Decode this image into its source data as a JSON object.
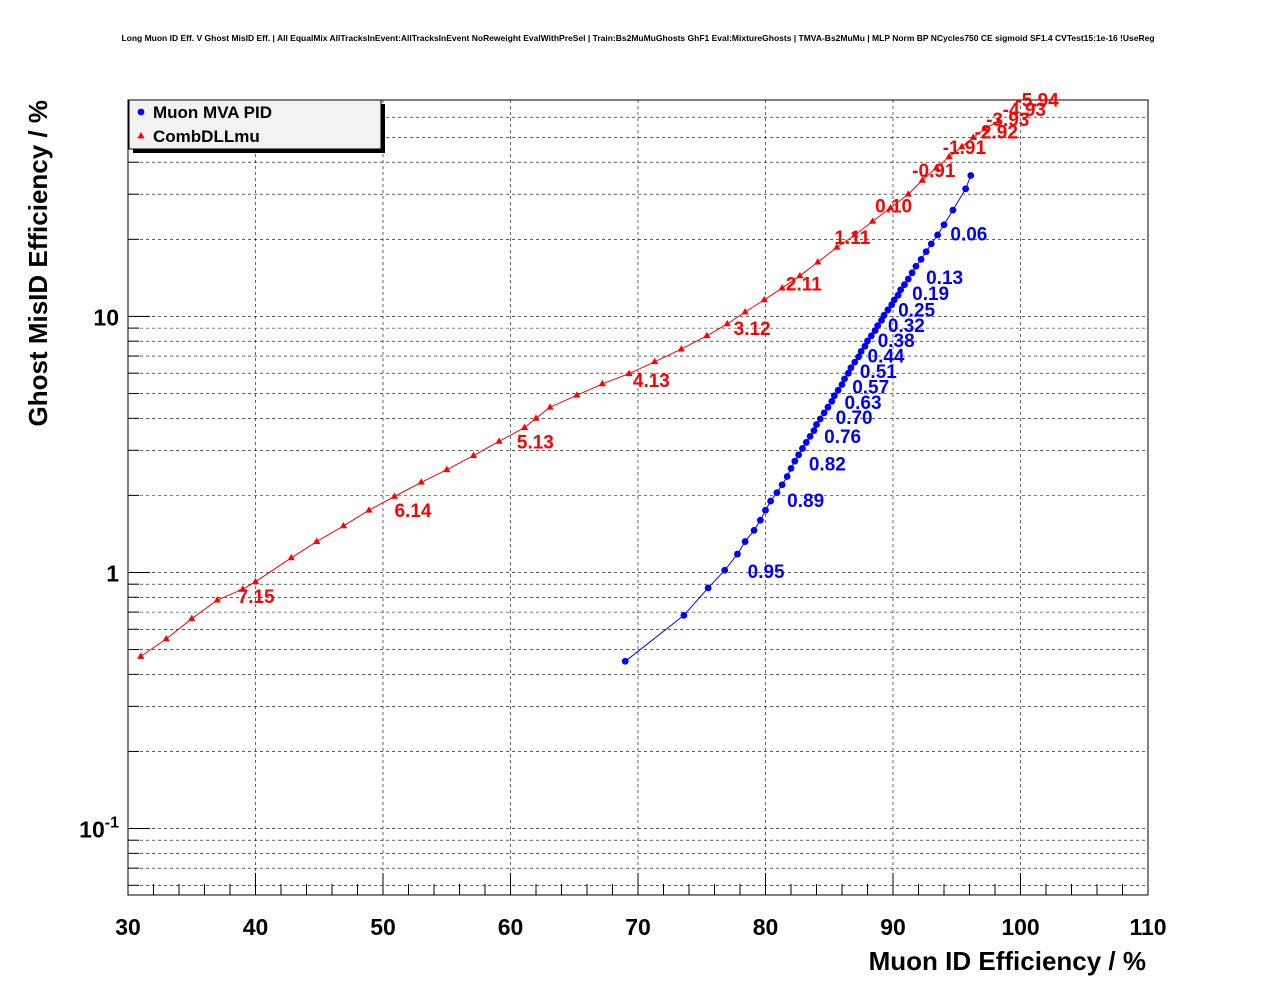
{
  "chart_data": {
    "type": "scatter",
    "title": "Long Muon ID Eff. V Ghost MisID Eff. | All EqualMix AllTracksInEvent:AllTracksInEvent NoReweight EvalWithPreSel | Train:Bs2MuMuGhosts GhF1 Eval:MixtureGhosts | TMVA-Bs2MuMu | MLP Norm BP NCycles750 CE sigmoid SF1.4 CVTest15:1e-16 !UseReg",
    "xlabel": "Muon ID Efficiency / %",
    "ylabel": "Ghost MisID Efficiency / %",
    "xlim": [
      30,
      110
    ],
    "ylim": [
      0.055,
      70
    ],
    "yscale": "log",
    "grid": true,
    "legend_position": "top-left",
    "x_ticks": [
      "30",
      "40",
      "50",
      "60",
      "70",
      "80",
      "90",
      "100",
      "110"
    ],
    "y_ticks": [
      {
        "base": "10",
        "exp": "-1",
        "value": 0.1
      },
      {
        "base": "1",
        "exp": "",
        "value": 1
      },
      {
        "base": "10",
        "exp": "",
        "value": 10
      }
    ],
    "series": [
      {
        "name": "Muon MVA PID",
        "color": "#0000ff",
        "marker": "circle",
        "points": [
          [
            69.0,
            0.45
          ],
          [
            73.6,
            0.68
          ],
          [
            75.5,
            0.87
          ],
          [
            76.8,
            1.02
          ],
          [
            77.8,
            1.18
          ],
          [
            78.4,
            1.32
          ],
          [
            79.1,
            1.46
          ],
          [
            79.6,
            1.6
          ],
          [
            80.0,
            1.75
          ],
          [
            80.4,
            1.9
          ],
          [
            80.9,
            2.05
          ],
          [
            81.3,
            2.2
          ],
          [
            81.7,
            2.37
          ],
          [
            82.0,
            2.55
          ],
          [
            82.3,
            2.72
          ],
          [
            82.6,
            2.88
          ],
          [
            82.9,
            3.05
          ],
          [
            83.2,
            3.22
          ],
          [
            83.5,
            3.4
          ],
          [
            83.8,
            3.58
          ],
          [
            84.0,
            3.78
          ],
          [
            84.3,
            3.98
          ],
          [
            84.6,
            4.2
          ],
          [
            84.9,
            4.42
          ],
          [
            85.2,
            4.66
          ],
          [
            85.4,
            4.9
          ],
          [
            85.7,
            5.15
          ],
          [
            86.0,
            5.42
          ],
          [
            86.2,
            5.7
          ],
          [
            86.5,
            6.0
          ],
          [
            86.7,
            6.3
          ],
          [
            87.0,
            6.62
          ],
          [
            87.3,
            6.95
          ],
          [
            87.5,
            7.3
          ],
          [
            87.8,
            7.65
          ],
          [
            88.0,
            8.02
          ],
          [
            88.3,
            8.4
          ],
          [
            88.6,
            8.8
          ],
          [
            88.8,
            9.2
          ],
          [
            89.1,
            9.65
          ],
          [
            89.3,
            10.1
          ],
          [
            89.6,
            10.6
          ],
          [
            89.9,
            11.1
          ],
          [
            90.1,
            11.6
          ],
          [
            90.4,
            12.1
          ],
          [
            90.6,
            12.7
          ],
          [
            90.9,
            13.3
          ],
          [
            91.2,
            14.0
          ],
          [
            91.5,
            14.8
          ],
          [
            91.8,
            15.7
          ],
          [
            92.2,
            16.7
          ],
          [
            92.6,
            17.9
          ],
          [
            93.0,
            19.2
          ],
          [
            93.5,
            20.8
          ],
          [
            94.0,
            22.8
          ],
          [
            94.7,
            26.0
          ],
          [
            95.7,
            31.5
          ],
          [
            96.1,
            35.5
          ]
        ],
        "labels": [
          {
            "text": "0.95",
            "x": 78.6,
            "y": 0.95
          },
          {
            "text": "0.89",
            "x": 81.7,
            "y": 1.8
          },
          {
            "text": "0.82",
            "x": 83.4,
            "y": 2.5
          },
          {
            "text": "0.76",
            "x": 84.6,
            "y": 3.2
          },
          {
            "text": "0.70",
            "x": 85.5,
            "y": 3.8
          },
          {
            "text": "0.63",
            "x": 86.2,
            "y": 4.35
          },
          {
            "text": "0.57",
            "x": 86.8,
            "y": 5.0
          },
          {
            "text": "0.51",
            "x": 87.4,
            "y": 5.75
          },
          {
            "text": "0.44",
            "x": 88.0,
            "y": 6.6
          },
          {
            "text": "0.38",
            "x": 88.8,
            "y": 7.6
          },
          {
            "text": "0.32",
            "x": 89.6,
            "y": 8.7
          },
          {
            "text": "0.25",
            "x": 90.4,
            "y": 10.0
          },
          {
            "text": "0.19",
            "x": 91.5,
            "y": 11.6
          },
          {
            "text": "0.13",
            "x": 92.6,
            "y": 13.4
          },
          {
            "text": "0.06",
            "x": 94.5,
            "y": 19.8
          }
        ]
      },
      {
        "name": "CombDLLmu",
        "color": "#ff0000",
        "marker": "triangle",
        "points": [
          [
            31.0,
            0.47
          ],
          [
            33.0,
            0.55
          ],
          [
            35.0,
            0.66
          ],
          [
            37.0,
            0.78
          ],
          [
            39.0,
            0.86
          ],
          [
            40.0,
            0.92
          ],
          [
            42.8,
            1.14
          ],
          [
            44.8,
            1.32
          ],
          [
            46.9,
            1.52
          ],
          [
            48.9,
            1.75
          ],
          [
            50.9,
            1.98
          ],
          [
            53.0,
            2.25
          ],
          [
            55.0,
            2.52
          ],
          [
            57.1,
            2.86
          ],
          [
            59.1,
            3.25
          ],
          [
            61.1,
            3.68
          ],
          [
            62.0,
            4.0
          ],
          [
            63.1,
            4.42
          ],
          [
            65.2,
            4.92
          ],
          [
            67.2,
            5.45
          ],
          [
            69.3,
            5.98
          ],
          [
            71.3,
            6.65
          ],
          [
            73.4,
            7.45
          ],
          [
            75.4,
            8.4
          ],
          [
            77.0,
            9.35
          ],
          [
            78.4,
            10.4
          ],
          [
            79.9,
            11.6
          ],
          [
            81.3,
            12.9
          ],
          [
            82.7,
            14.4
          ],
          [
            84.1,
            16.3
          ],
          [
            85.6,
            18.6
          ],
          [
            87.0,
            20.8
          ],
          [
            88.4,
            23.5
          ],
          [
            89.8,
            26.5
          ],
          [
            91.2,
            30.0
          ],
          [
            92.3,
            34.0
          ],
          [
            93.4,
            38.0
          ],
          [
            94.4,
            42.0
          ],
          [
            95.4,
            46.0
          ],
          [
            96.3,
            50.0
          ],
          [
            97.2,
            54.0
          ],
          [
            98.3,
            58.0
          ]
        ],
        "labels": [
          {
            "text": "7.15",
            "x": 38.6,
            "y": 0.76
          },
          {
            "text": "6.14",
            "x": 50.9,
            "y": 1.65
          },
          {
            "text": "5.13",
            "x": 60.5,
            "y": 3.05
          },
          {
            "text": "4.13",
            "x": 69.6,
            "y": 5.3
          },
          {
            "text": "3.12",
            "x": 77.5,
            "y": 8.45
          },
          {
            "text": "2.11",
            "x": 81.6,
            "y": 12.6
          },
          {
            "text": "1.11",
            "x": 85.4,
            "y": 19.2
          },
          {
            "text": "0.10",
            "x": 88.6,
            "y": 25.4
          },
          {
            "text": "-0.91",
            "x": 91.5,
            "y": 35.0
          },
          {
            "text": "-1.91",
            "x": 93.9,
            "y": 43.0
          },
          {
            "text": "-2.92",
            "x": 96.4,
            "y": 49.5
          },
          {
            "text": "-3.93",
            "x": 97.3,
            "y": 55.5
          },
          {
            "text": "-4.93",
            "x": 98.6,
            "y": 60.5
          },
          {
            "text": "-5.94",
            "x": 99.6,
            "y": 66.0
          }
        ]
      }
    ]
  }
}
